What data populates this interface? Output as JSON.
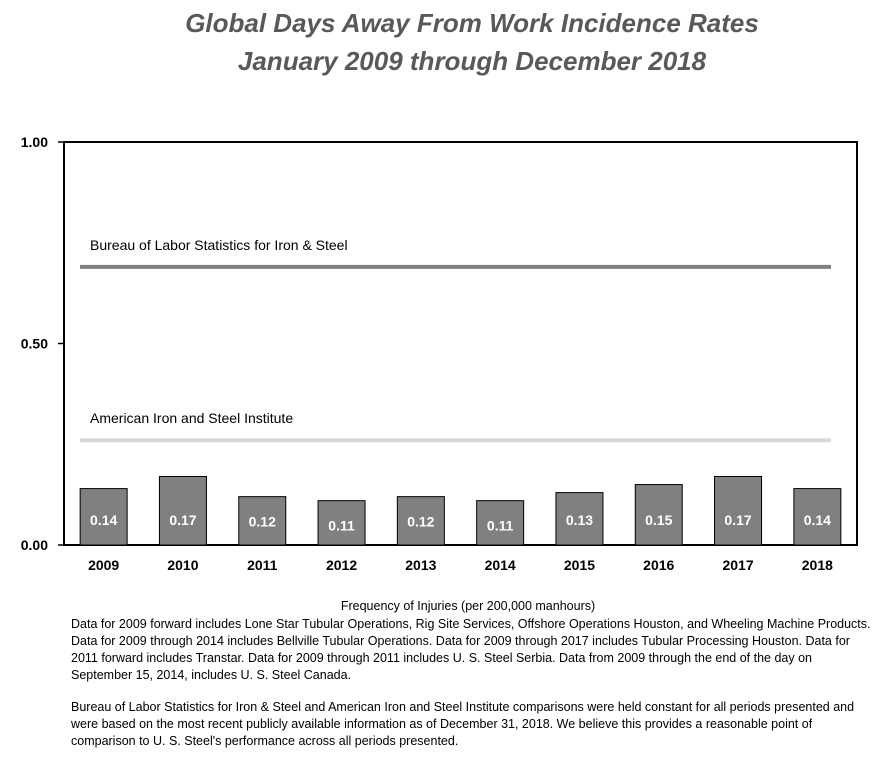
{
  "chart_data": {
    "type": "bar",
    "title": "Global Days Away From Work Incidence Rates",
    "subtitle": "January 2009 through December 2018",
    "categories": [
      "2009",
      "2010",
      "2011",
      "2012",
      "2013",
      "2014",
      "2015",
      "2016",
      "2017",
      "2018"
    ],
    "values": [
      0.14,
      0.17,
      0.12,
      0.11,
      0.12,
      0.11,
      0.13,
      0.15,
      0.17,
      0.14
    ],
    "data_labels": [
      "0.14",
      "0.17",
      "0.12",
      "0.11",
      "0.12",
      "0.11",
      "0.13",
      "0.15",
      "0.17",
      "0.14"
    ],
    "ylim": [
      0,
      1.0
    ],
    "yticks": [
      {
        "value": 0.0,
        "label": "0.00"
      },
      {
        "value": 0.5,
        "label": "0.50"
      },
      {
        "value": 1.0,
        "label": "1.00"
      }
    ],
    "xlabel": "Frequency of Injuries (per 200,000 manhours)",
    "ylabel": "",
    "grid": false,
    "reference_lines": [
      {
        "name": "Bureau of Labor Statistics for Iron & Steel",
        "value": 0.69,
        "color": "#7f7f7f"
      },
      {
        "name": "American Iron and Steel Institute",
        "value": 0.26,
        "color": "#d9d9d9"
      }
    ],
    "colors": {
      "bar": "#808080",
      "bar_label": "#ffffff",
      "title": "#595959"
    }
  },
  "notes": [
    "Data for 2009 forward includes Lone Star Tubular Operations, Rig Site Services, Offshore Operations Houston, and Wheeling Machine Products. Data for 2009 through 2014 includes Bellville Tubular Operations. Data for 2009 through 2017 includes Tubular Processing Houston. Data for 2011 forward includes Transtar. Data for 2009 through 2011 includes U. S. Steel Serbia. Data from 2009 through the end of the day on September 15, 2014, includes U. S. Steel Canada.",
    "Bureau of Labor Statistics for Iron & Steel and American Iron and Steel Institute comparisons were held constant for all periods presented and were based on the most recent publicly available information as of December 31, 2018. We believe this provides a reasonable point of comparison to U. S. Steel's performance across all periods presented."
  ]
}
